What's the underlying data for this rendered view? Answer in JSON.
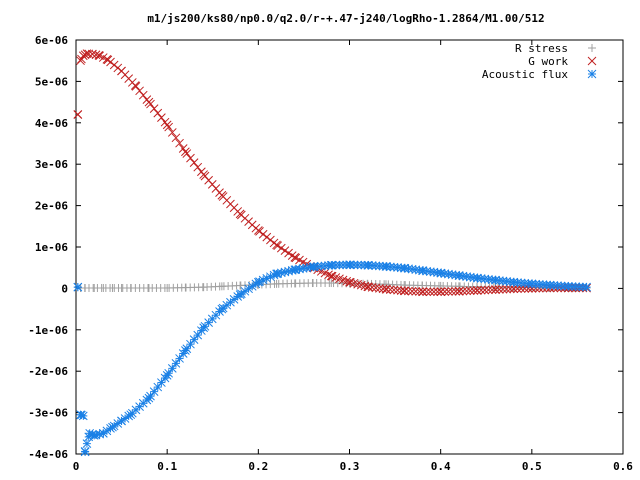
{
  "chart_data": {
    "type": "scatter",
    "title": "m1/js200/ks80/np0.0/q2.0/r-+.47-j240/logRho-1.2864/M1.00/512",
    "xlabel": "",
    "ylabel": "",
    "xlim": [
      0,
      0.6
    ],
    "ylim": [
      -4e-06,
      6e-06
    ],
    "x_ticks": [
      "0",
      "0.1",
      "0.2",
      "0.3",
      "0.4",
      "0.5",
      "0.6"
    ],
    "y_ticks": [
      "-4e-06",
      "-3e-06",
      "-2e-06",
      "-1e-06",
      "0",
      "1e-06",
      "2e-06",
      "3e-06",
      "4e-06",
      "5e-06",
      "6e-06"
    ],
    "legend_position": "top-right",
    "grid": false,
    "series": [
      {
        "name": "R stress",
        "marker": "+",
        "color": "#a0a0a0",
        "x": [
          0.005,
          0.01,
          0.02,
          0.03,
          0.04,
          0.05,
          0.06,
          0.08,
          0.1,
          0.12,
          0.14,
          0.16,
          0.18,
          0.2,
          0.22,
          0.24,
          0.26,
          0.28,
          0.3,
          0.32,
          0.34,
          0.36,
          0.38,
          0.4,
          0.42,
          0.44,
          0.46,
          0.48,
          0.5,
          0.52,
          0.54,
          0.56
        ],
        "y": [
          1e-08,
          1e-08,
          1e-08,
          1e-08,
          1e-08,
          1e-08,
          1e-08,
          1e-08,
          1e-08,
          2e-08,
          3e-08,
          5e-08,
          7e-08,
          9e-08,
          1.1e-07,
          1.2e-07,
          1.3e-07,
          1.3e-07,
          1.2e-07,
          1.1e-07,
          1e-07,
          8e-08,
          7e-08,
          6e-08,
          5e-08,
          4e-08,
          3e-08,
          2e-08,
          2e-08,
          1e-08,
          1e-08,
          1e-08
        ]
      },
      {
        "name": "G work",
        "marker": "x",
        "color": "#c02020",
        "x": [
          0.002,
          0.005,
          0.008,
          0.012,
          0.018,
          0.025,
          0.035,
          0.05,
          0.065,
          0.08,
          0.1,
          0.12,
          0.14,
          0.16,
          0.18,
          0.2,
          0.22,
          0.24,
          0.26,
          0.28,
          0.3,
          0.32,
          0.34,
          0.36,
          0.38,
          0.4,
          0.42,
          0.44,
          0.46,
          0.48,
          0.5,
          0.52,
          0.54,
          0.56
        ],
        "y": [
          4.2e-06,
          5.5e-06,
          5.62e-06,
          5.67e-06,
          5.66e-06,
          5.63e-06,
          5.52e-06,
          5.25e-06,
          4.9e-06,
          4.5e-06,
          3.95e-06,
          3.3e-06,
          2.75e-06,
          2.25e-06,
          1.8e-06,
          1.4e-06,
          1.05e-06,
          7.5e-07,
          5e-07,
          3e-07,
          1.5e-07,
          4e-08,
          -2e-08,
          -6e-08,
          -8e-08,
          -8e-08,
          -7e-08,
          -5e-08,
          -3e-08,
          -1e-08,
          0,
          1e-08,
          1e-08,
          1e-08
        ]
      },
      {
        "name": "Acoustic flux",
        "marker": "*",
        "color": "#1a80e6",
        "x": [
          0.002,
          0.005,
          0.008,
          0.01,
          0.012,
          0.015,
          0.02,
          0.03,
          0.04,
          0.05,
          0.06,
          0.08,
          0.1,
          0.12,
          0.14,
          0.16,
          0.18,
          0.2,
          0.22,
          0.24,
          0.26,
          0.28,
          0.3,
          0.32,
          0.34,
          0.36,
          0.38,
          0.4,
          0.42,
          0.44,
          0.46,
          0.48,
          0.5,
          0.52,
          0.54,
          0.56
        ],
        "y": [
          3e-08,
          -3.05e-06,
          -3.08e-06,
          -3.95e-06,
          -3.75e-06,
          -3.5e-06,
          -3.55e-06,
          -3.5e-06,
          -3.35e-06,
          -3.2e-06,
          -3.05e-06,
          -2.65e-06,
          -2.1e-06,
          -1.5e-06,
          -9.5e-07,
          -5e-07,
          -1.5e-07,
          1.5e-07,
          3.5e-07,
          4.5e-07,
          5.2e-07,
          5.6e-07,
          5.7e-07,
          5.6e-07,
          5.3e-07,
          4.9e-07,
          4.3e-07,
          3.7e-07,
          3.1e-07,
          2.5e-07,
          2e-07,
          1.5e-07,
          1.1e-07,
          8e-08,
          5e-08,
          3e-08
        ]
      }
    ]
  }
}
